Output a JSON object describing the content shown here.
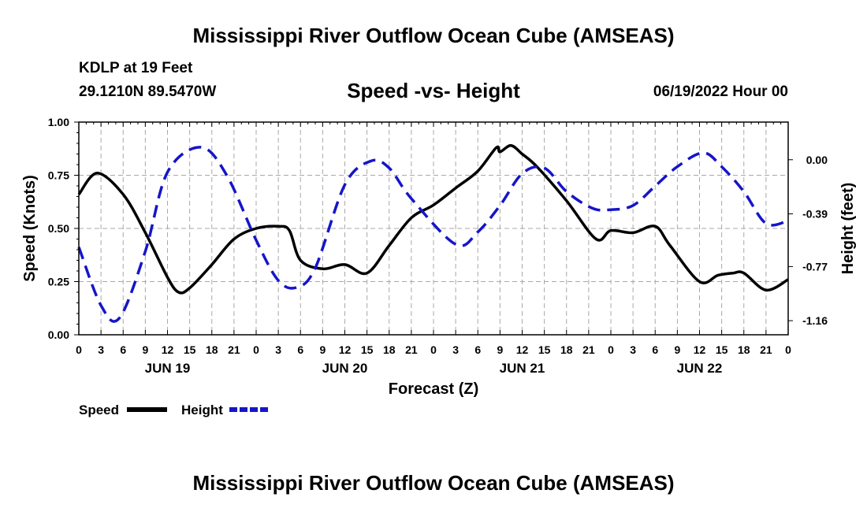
{
  "header": {
    "title": "Mississippi River Outflow Ocean Cube (AMSEAS)",
    "station": "KDLP at 19 Feet",
    "coordinates": "29.1210N  89.5470W",
    "subtitle": "Speed -vs- Height",
    "datetime": "06/19/2022 Hour 00",
    "footer_title": "Mississippi River Outflow Ocean Cube (AMSEAS)"
  },
  "chart_data": {
    "type": "line",
    "title": "Speed -vs- Height",
    "xlabel": "Forecast (Z)",
    "ylabel": "Speed (Knots)",
    "y2label": "Height (feet)",
    "xlim": [
      0,
      96
    ],
    "ylim": [
      0,
      1
    ],
    "y2lim": [
      -1.2615,
      0.2712
    ],
    "grid": true,
    "x_tick_labels": [
      "0",
      "3",
      "6",
      "9",
      "12",
      "15",
      "18",
      "21",
      "0",
      "3",
      "6",
      "9",
      "12",
      "15",
      "18",
      "21",
      "0",
      "3",
      "6",
      "9",
      "12",
      "15",
      "18",
      "21",
      "0",
      "3",
      "6",
      "9",
      "12",
      "15",
      "18",
      "21",
      "0"
    ],
    "date_labels": [
      {
        "label": "JUN 19",
        "hour": 12
      },
      {
        "label": "JUN 20",
        "hour": 36
      },
      {
        "label": "JUN 21",
        "hour": 60
      },
      {
        "label": "JUN 22",
        "hour": 84
      }
    ],
    "y_ticks": [
      "0.00",
      "0.25",
      "0.50",
      "0.75",
      "1.00"
    ],
    "y_tick_values": [
      0,
      0.25,
      0.5,
      0.75,
      1.0
    ],
    "y2_ticks": [
      "0.00",
      "-0.39",
      "-0.77",
      "-1.16"
    ],
    "y2_tick_values": [
      0.0,
      -0.39,
      -0.77,
      -1.16
    ],
    "series": [
      {
        "name": "Speed",
        "axis": "left",
        "color": "#000000",
        "dash": "solid",
        "x": [
          0,
          2.5,
          6,
          9,
          12,
          13.5,
          15,
          18,
          21,
          24,
          27,
          28.5,
          30,
          33,
          36,
          39,
          42,
          45,
          48,
          51,
          54,
          57,
          56.5,
          58.5,
          60,
          62,
          66,
          70,
          72,
          75,
          78,
          80,
          84,
          86.5,
          88.5,
          90,
          93,
          96
        ],
        "values": [
          0.66,
          0.76,
          0.66,
          0.48,
          0.27,
          0.2,
          0.22,
          0.33,
          0.45,
          0.5,
          0.51,
          0.49,
          0.35,
          0.31,
          0.33,
          0.29,
          0.42,
          0.55,
          0.61,
          0.69,
          0.77,
          0.86,
          0.88,
          0.89,
          0.85,
          0.79,
          0.63,
          0.45,
          0.49,
          0.48,
          0.51,
          0.42,
          0.25,
          0.28,
          0.29,
          0.29,
          0.21,
          0.26
        ]
      },
      {
        "name": "Height",
        "axis": "right",
        "color": "#1515c8",
        "dash": "dashed",
        "x": [
          0,
          3,
          5.5,
          9,
          12,
          16.5,
          20,
          24,
          27,
          29.5,
          32,
          36,
          39.5,
          42,
          45,
          51,
          54,
          57,
          60,
          63,
          66,
          69.5,
          72,
          75,
          78,
          81,
          84.5,
          87,
          90,
          93,
          96
        ],
        "values": [
          -0.63,
          -1.05,
          -1.14,
          -0.66,
          -0.09,
          0.09,
          -0.11,
          -0.58,
          -0.87,
          -0.92,
          -0.78,
          -0.18,
          -0.01,
          -0.06,
          -0.28,
          -0.61,
          -0.52,
          -0.33,
          -0.1,
          -0.06,
          -0.23,
          -0.35,
          -0.36,
          -0.33,
          -0.19,
          -0.05,
          0.05,
          -0.05,
          -0.23,
          -0.46,
          -0.44
        ]
      }
    ],
    "legend": [
      {
        "label": "Speed",
        "color": "#000000"
      },
      {
        "label": "Height",
        "color": "#1515c8"
      }
    ]
  }
}
